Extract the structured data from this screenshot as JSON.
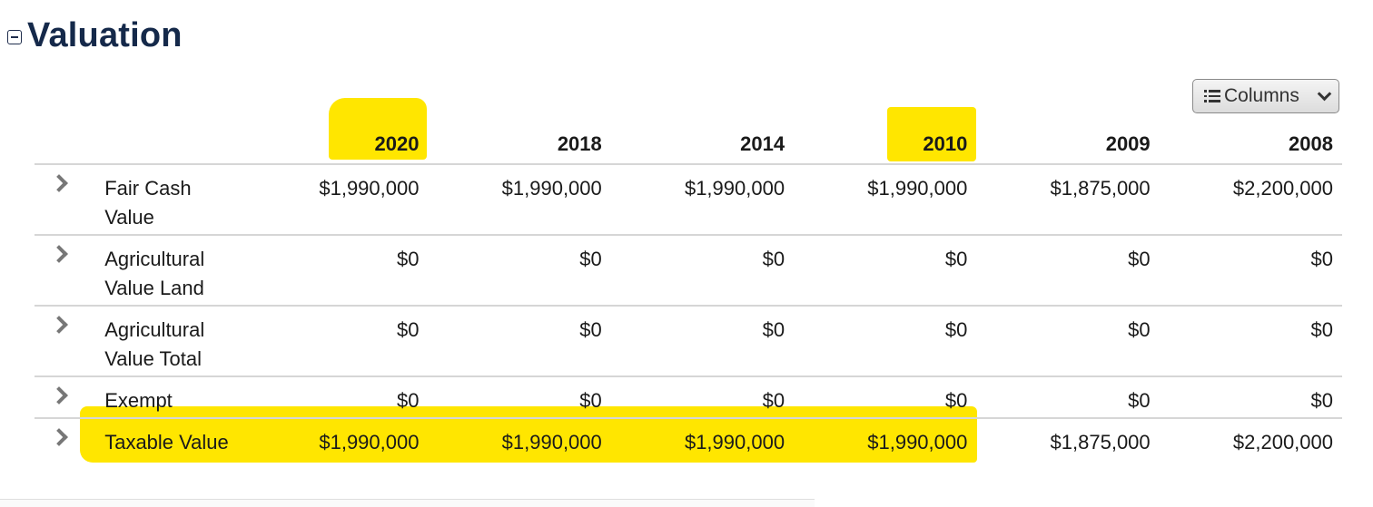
{
  "section": {
    "title": "Valuation",
    "collapse_icon": "collapse-minus-icon"
  },
  "columns_button": {
    "label": "Columns",
    "icon": "list-icon",
    "caret": "chevron-down-icon"
  },
  "table": {
    "years": [
      "2020",
      "2018",
      "2014",
      "2010",
      "2009",
      "2008"
    ],
    "rows": [
      {
        "label": "Fair Cash Value",
        "values": [
          "$1,990,000",
          "$1,990,000",
          "$1,990,000",
          "$1,990,000",
          "$1,875,000",
          "$2,200,000"
        ]
      },
      {
        "label": "Agricultural Value Land",
        "values": [
          "$0",
          "$0",
          "$0",
          "$0",
          "$0",
          "$0"
        ]
      },
      {
        "label": "Agricultural Value Total",
        "values": [
          "$0",
          "$0",
          "$0",
          "$0",
          "$0",
          "$0"
        ]
      },
      {
        "label": "Exempt",
        "values": [
          "$0",
          "$0",
          "$0",
          "$0",
          "$0",
          "$0"
        ]
      },
      {
        "label": "Taxable Value",
        "values": [
          "$1,990,000",
          "$1,990,000",
          "$1,990,000",
          "$1,990,000",
          "$1,875,000",
          "$2,200,000"
        ]
      }
    ]
  },
  "highlight_color": "#ffe600"
}
